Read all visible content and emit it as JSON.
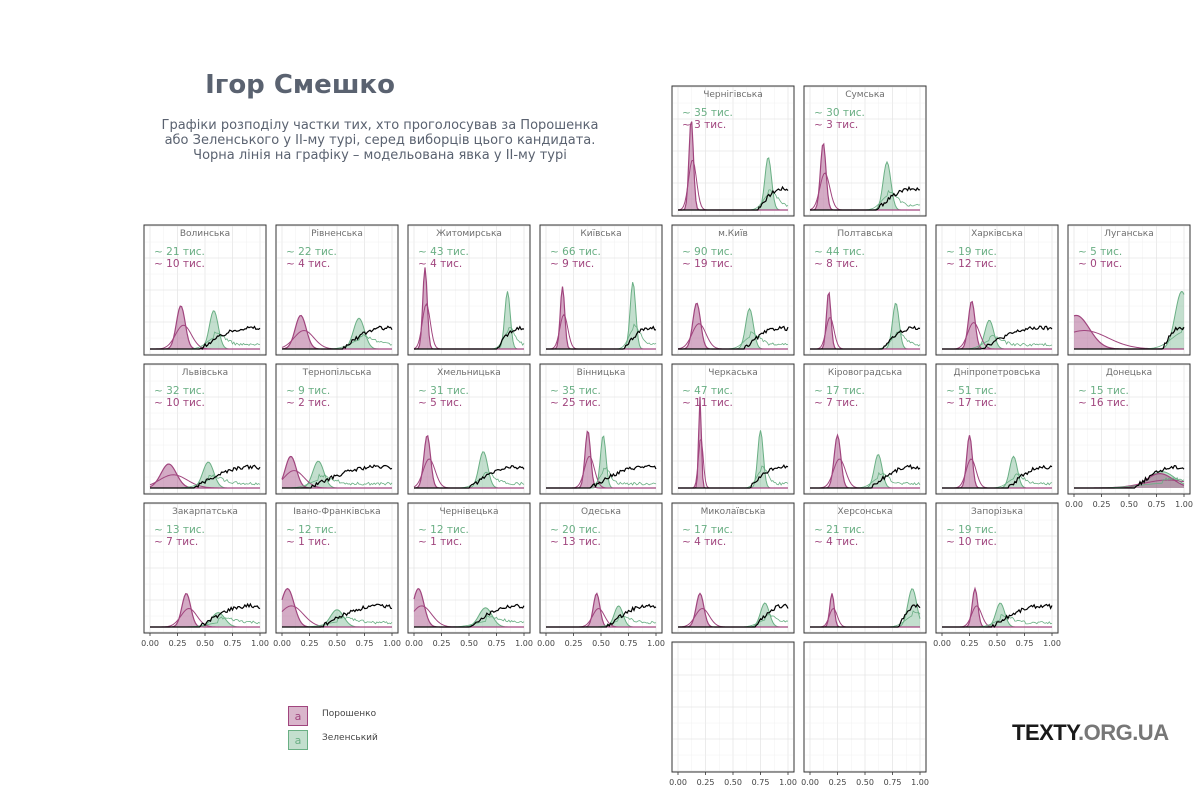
{
  "header": {
    "title": "Ігор Смешко",
    "subtitle_lines": [
      "Графіки розподілу частки тих, хто проголосував за Порошенка",
      "або Зеленського у ІІ-му турі, серед виборців цього кандидата.",
      "Чорна лінія на графіку – модельована явка у ІІ-му турі"
    ]
  },
  "legend": {
    "items": [
      {
        "name": "Порошенко",
        "color": "#a0457e",
        "key_glyph": "a"
      },
      {
        "name": "Зеленський",
        "color": "#6aaf84",
        "key_glyph": "a"
      }
    ]
  },
  "logo": {
    "text_main": "TEXTY",
    "text_suffix": ".ORG.UA"
  },
  "chart_data": {
    "type": "area",
    "faceted": true,
    "xlim": [
      0,
      1
    ],
    "x_tick_labels": [
      "0.00",
      "0.25",
      "0.50",
      "0.75",
      "1.00"
    ],
    "grid": true,
    "legend_position": "bottom-left",
    "series_colors": {
      "poroshenko": "#a0457e",
      "zelensky": "#6aaf84",
      "turnout": "#000000"
    },
    "panels": [
      {
        "name": "Чернігівська",
        "row": 0,
        "col": 4,
        "zel_count": "~ 35  тис.",
        "por_count": "~ 3  тис.",
        "por_peak": 0.12,
        "por_width": 0.02,
        "por_h": 0.95,
        "zel_peak": 0.82,
        "zel_width": 0.03,
        "zel_h": 0.55,
        "turnout_start": 0.72
      },
      {
        "name": "Сумська",
        "row": 0,
        "col": 5,
        "zel_count": "~ 30  тис.",
        "por_count": "~ 3  тис.",
        "por_peak": 0.12,
        "por_width": 0.025,
        "por_h": 0.7,
        "zel_peak": 0.7,
        "zel_width": 0.035,
        "zel_h": 0.5,
        "turnout_start": 0.6
      },
      {
        "name": "Волинська",
        "row": 1,
        "col": 0,
        "zel_count": "~ 21  тис.",
        "por_count": "~ 10  тис.",
        "por_peak": 0.28,
        "por_width": 0.04,
        "por_h": 0.45,
        "zel_peak": 0.58,
        "zel_width": 0.04,
        "zel_h": 0.4,
        "turnout_start": 0.45
      },
      {
        "name": "Рівненська",
        "row": 1,
        "col": 1,
        "zel_count": "~ 22  тис.",
        "por_count": "~ 4  тис.",
        "por_peak": 0.17,
        "por_width": 0.05,
        "por_h": 0.35,
        "zel_peak": 0.7,
        "zel_width": 0.05,
        "zel_h": 0.32,
        "turnout_start": 0.55
      },
      {
        "name": "Житомирська",
        "row": 1,
        "col": 2,
        "zel_count": "~ 43  тис.",
        "por_count": "~ 4  тис.",
        "por_peak": 0.1,
        "por_width": 0.02,
        "por_h": 0.85,
        "zel_peak": 0.85,
        "zel_width": 0.025,
        "zel_h": 0.6,
        "turnout_start": 0.75
      },
      {
        "name": "Київська",
        "row": 1,
        "col": 3,
        "zel_count": "~ 66  тис.",
        "por_count": "~ 9  тис.",
        "por_peak": 0.15,
        "por_width": 0.02,
        "por_h": 0.65,
        "zel_peak": 0.79,
        "zel_width": 0.025,
        "zel_h": 0.7,
        "turnout_start": 0.7
      },
      {
        "name": "м.Київ",
        "row": 1,
        "col": 4,
        "zel_count": "~ 90  тис.",
        "por_count": "~ 19  тис.",
        "por_peak": 0.17,
        "por_width": 0.035,
        "por_h": 0.48,
        "zel_peak": 0.65,
        "zel_width": 0.035,
        "zel_h": 0.42,
        "turnout_start": 0.6
      },
      {
        "name": "Полтавська",
        "row": 1,
        "col": 5,
        "zel_count": "~ 44  тис.",
        "por_count": "~ 8  тис.",
        "por_peak": 0.17,
        "por_width": 0.02,
        "por_h": 0.6,
        "zel_peak": 0.78,
        "zel_width": 0.03,
        "zel_h": 0.48,
        "turnout_start": 0.65
      },
      {
        "name": "Харківська",
        "row": 1,
        "col": 6,
        "zel_count": "~ 19  тис.",
        "por_count": "~ 12  тис.",
        "por_peak": 0.27,
        "por_width": 0.03,
        "por_h": 0.5,
        "zel_peak": 0.43,
        "zel_width": 0.04,
        "zel_h": 0.3,
        "turnout_start": 0.35
      },
      {
        "name": "Луганська",
        "row": 1,
        "col": 7,
        "zel_count": "~ 5  тис.",
        "por_count": "~ 0  тис.",
        "por_peak": 0.02,
        "por_width": 0.12,
        "por_h": 0.35,
        "zel_peak": 0.98,
        "zel_width": 0.06,
        "zel_h": 0.6,
        "turnout_start": 0.8
      },
      {
        "name": "Львівська",
        "row": 2,
        "col": 0,
        "zel_count": "~ 32  тис.",
        "por_count": "~ 10  тис.",
        "por_peak": 0.17,
        "por_width": 0.07,
        "por_h": 0.25,
        "zel_peak": 0.53,
        "zel_width": 0.05,
        "zel_h": 0.27,
        "turnout_start": 0.4
      },
      {
        "name": "Тернопільська",
        "row": 2,
        "col": 1,
        "zel_count": "~ 9  тис.",
        "por_count": "~ 2  тис.",
        "por_peak": 0.08,
        "por_width": 0.05,
        "por_h": 0.33,
        "zel_peak": 0.33,
        "zel_width": 0.05,
        "zel_h": 0.28,
        "turnout_start": 0.25
      },
      {
        "name": "Хмельницька",
        "row": 2,
        "col": 2,
        "zel_count": "~ 31  тис.",
        "por_count": "~ 5  тис.",
        "por_peak": 0.12,
        "por_width": 0.03,
        "por_h": 0.55,
        "zel_peak": 0.63,
        "zel_width": 0.04,
        "zel_h": 0.38,
        "turnout_start": 0.5
      },
      {
        "name": "Вінницька",
        "row": 2,
        "col": 3,
        "zel_count": "~ 35  тис.",
        "por_count": "~ 25  тис.",
        "por_peak": 0.38,
        "por_width": 0.025,
        "por_h": 0.6,
        "zel_peak": 0.52,
        "zel_width": 0.025,
        "zel_h": 0.55,
        "turnout_start": 0.4
      },
      {
        "name": "Черкаська",
        "row": 2,
        "col": 4,
        "zel_count": "~ 47  тис.",
        "por_count": "~ 11  тис.",
        "por_peak": 0.2,
        "por_width": 0.012,
        "por_h": 0.95,
        "zel_peak": 0.75,
        "zel_width": 0.025,
        "zel_h": 0.6,
        "turnout_start": 0.65
      },
      {
        "name": "Кіровоградська",
        "row": 2,
        "col": 5,
        "zel_count": "~ 17  тис.",
        "por_count": "~ 7  тис.",
        "por_peak": 0.25,
        "por_width": 0.03,
        "por_h": 0.55,
        "zel_peak": 0.62,
        "zel_width": 0.035,
        "zel_h": 0.35,
        "turnout_start": 0.55
      },
      {
        "name": "Дніпропетровська",
        "row": 2,
        "col": 6,
        "zel_count": "~ 51  тис.",
        "por_count": "~ 17  тис.",
        "por_peak": 0.25,
        "por_width": 0.025,
        "por_h": 0.55,
        "zel_peak": 0.65,
        "zel_width": 0.035,
        "zel_h": 0.33,
        "turnout_start": 0.6
      },
      {
        "name": "Донецька",
        "row": 2,
        "col": 7,
        "zel_count": "~ 15  тис.",
        "por_count": "~ 16  тис.",
        "por_peak": 0.78,
        "por_width": 0.12,
        "por_h": 0.15,
        "zel_peak": 0.8,
        "zel_width": 0.12,
        "zel_h": 0.17,
        "turnout_start": 0.55
      },
      {
        "name": "Закарпатська",
        "row": 3,
        "col": 0,
        "zel_count": "~ 13  тис.",
        "por_count": "~ 7  тис.",
        "por_peak": 0.33,
        "por_width": 0.04,
        "por_h": 0.35,
        "zel_peak": 0.62,
        "zel_width": 0.06,
        "zel_h": 0.15,
        "turnout_start": 0.45
      },
      {
        "name": "Івано-Франківська",
        "row": 3,
        "col": 1,
        "zel_count": "~ 12  тис.",
        "por_count": "~ 1  тис.",
        "por_peak": 0.05,
        "por_width": 0.06,
        "por_h": 0.4,
        "zel_peak": 0.5,
        "zel_width": 0.06,
        "zel_h": 0.18,
        "turnout_start": 0.35
      },
      {
        "name": "Чернівецька",
        "row": 3,
        "col": 2,
        "zel_count": "~ 12  тис.",
        "por_count": "~ 1  тис.",
        "por_peak": 0.04,
        "por_width": 0.05,
        "por_h": 0.4,
        "zel_peak": 0.65,
        "zel_width": 0.06,
        "zel_h": 0.2,
        "turnout_start": 0.5
      },
      {
        "name": "Одеська",
        "row": 3,
        "col": 3,
        "zel_count": "~ 20  тис.",
        "por_count": "~ 13  тис.",
        "por_peak": 0.46,
        "por_width": 0.03,
        "por_h": 0.35,
        "zel_peak": 0.66,
        "zel_width": 0.04,
        "zel_h": 0.22,
        "turnout_start": 0.55
      },
      {
        "name": "Миколаївська",
        "row": 3,
        "col": 4,
        "zel_count": "~ 17  тис.",
        "por_count": "~ 4  тис.",
        "por_peak": 0.2,
        "por_width": 0.035,
        "por_h": 0.35,
        "zel_peak": 0.79,
        "zel_width": 0.04,
        "zel_h": 0.25,
        "turnout_start": 0.7
      },
      {
        "name": "Херсонська",
        "row": 3,
        "col": 5,
        "zel_count": "~ 21  тис.",
        "por_count": "~ 4  тис.",
        "por_peak": 0.2,
        "por_width": 0.02,
        "por_h": 0.35,
        "zel_peak": 0.93,
        "zel_width": 0.04,
        "zel_h": 0.4,
        "turnout_start": 0.8
      },
      {
        "name": "Запорізька",
        "row": 3,
        "col": 6,
        "zel_count": "~ 19  тис.",
        "por_count": "~ 10  тис.",
        "por_peak": 0.3,
        "por_width": 0.025,
        "por_h": 0.4,
        "zel_peak": 0.53,
        "zel_width": 0.04,
        "zel_h": 0.25,
        "turnout_start": 0.45
      },
      {
        "name": "",
        "row": 4,
        "col": 4,
        "empty": true
      },
      {
        "name": "",
        "row": 4,
        "col": 5,
        "empty": true
      }
    ]
  }
}
